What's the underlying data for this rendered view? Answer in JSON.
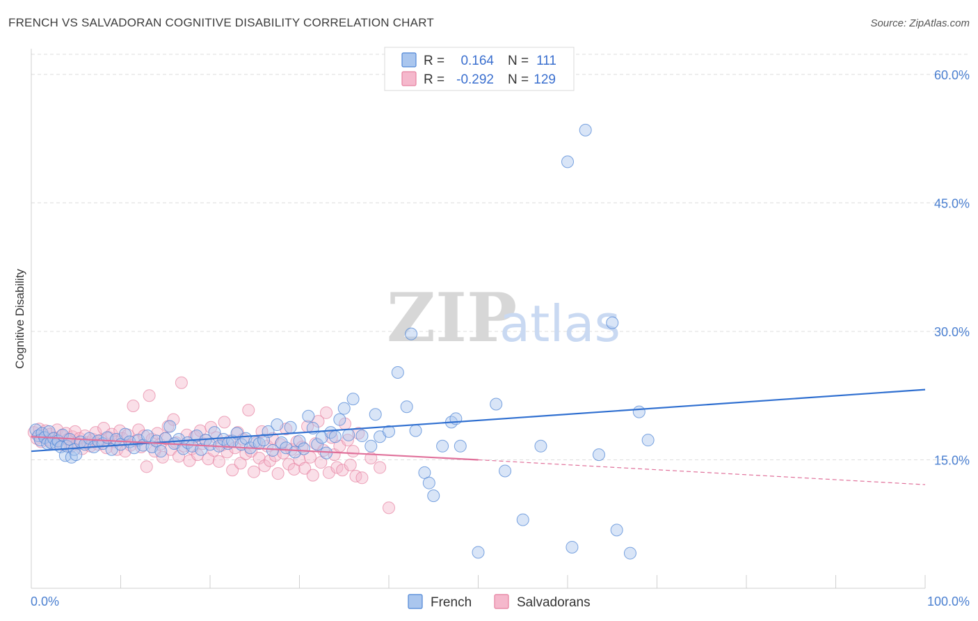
{
  "title": "FRENCH VS SALVADORAN COGNITIVE DISABILITY CORRELATION CHART",
  "source": "Source: ZipAtlas.com",
  "watermark": {
    "zip": "ZIP",
    "atlas": "atlas"
  },
  "colors": {
    "french_fill": "#aac6ee",
    "french_stroke": "#4f86d6",
    "french_line": "#2f6fd0",
    "salvadoran_fill": "#f5b8cc",
    "salvadoran_stroke": "#e5809f",
    "salvadoran_line": "#e0709a",
    "tick_label": "#4a7fd0",
    "grid": "#dddddd"
  },
  "legend": {
    "r_label": "R =",
    "n_label": "N =",
    "french": {
      "r": "0.164",
      "n": "111"
    },
    "salvadoran": {
      "r": "-0.292",
      "n": "129"
    }
  },
  "bottom_legend": {
    "french": "French",
    "salvadoran": "Salvadorans"
  },
  "chart_data": {
    "type": "scatter",
    "title": "FRENCH VS SALVADORAN COGNITIVE DISABILITY CORRELATION CHART",
    "xlabel": "",
    "ylabel": "Cognitive Disability",
    "xlim": [
      0,
      100
    ],
    "ylim": [
      0,
      63
    ],
    "x_tick_labels": [
      "0.0%",
      "100.0%"
    ],
    "y_ticks": [
      15,
      30,
      45,
      60
    ],
    "y_tick_labels": [
      "15.0%",
      "30.0%",
      "45.0%",
      "60.0%"
    ],
    "grid": "horizontal dashed",
    "legend_position": "top-center",
    "series": [
      {
        "name": "French",
        "r": 0.164,
        "n": 111,
        "trend": {
          "x": [
            0,
            100
          ],
          "y": [
            16.0,
            23.2
          ],
          "style": "solid"
        },
        "points": [
          [
            0.5,
            18.5
          ],
          [
            0.8,
            17.8
          ],
          [
            1.0,
            17.3
          ],
          [
            1.2,
            18.1
          ],
          [
            1.5,
            17.6
          ],
          [
            1.8,
            16.9
          ],
          [
            2.0,
            18.3
          ],
          [
            2.2,
            17.0
          ],
          [
            2.5,
            17.5
          ],
          [
            2.8,
            16.8
          ],
          [
            3.0,
            17.2
          ],
          [
            3.3,
            16.5
          ],
          [
            3.5,
            17.9
          ],
          [
            3.8,
            15.5
          ],
          [
            4.0,
            16.6
          ],
          [
            4.3,
            17.4
          ],
          [
            4.5,
            15.3
          ],
          [
            4.8,
            16.2
          ],
          [
            5.0,
            15.6
          ],
          [
            5.5,
            17.1
          ],
          [
            6.0,
            16.8
          ],
          [
            6.5,
            17.5
          ],
          [
            7.0,
            16.5
          ],
          [
            7.5,
            17.2
          ],
          [
            8.0,
            16.9
          ],
          [
            8.5,
            17.6
          ],
          [
            9.0,
            16.2
          ],
          [
            9.5,
            17.4
          ],
          [
            10.0,
            16.8
          ],
          [
            10.5,
            18.0
          ],
          [
            11.0,
            17.1
          ],
          [
            11.5,
            16.4
          ],
          [
            12.0,
            17.3
          ],
          [
            12.5,
            16.7
          ],
          [
            13.0,
            17.8
          ],
          [
            13.5,
            16.5
          ],
          [
            14.0,
            17.2
          ],
          [
            14.5,
            16.0
          ],
          [
            15.0,
            17.5
          ],
          [
            15.5,
            18.9
          ],
          [
            16.0,
            16.9
          ],
          [
            16.5,
            17.4
          ],
          [
            17.0,
            16.3
          ],
          [
            17.5,
            17.0
          ],
          [
            18.0,
            16.6
          ],
          [
            18.5,
            17.8
          ],
          [
            19.0,
            16.2
          ],
          [
            19.5,
            17.3
          ],
          [
            20.0,
            16.8
          ],
          [
            20.5,
            18.2
          ],
          [
            21.0,
            16.6
          ],
          [
            21.5,
            17.4
          ],
          [
            22.0,
            16.9
          ],
          [
            22.5,
            17.2
          ],
          [
            23.0,
            18.1
          ],
          [
            23.5,
            16.8
          ],
          [
            24.0,
            17.5
          ],
          [
            24.5,
            16.4
          ],
          [
            25.0,
            17.1
          ],
          [
            25.5,
            16.9
          ],
          [
            26.0,
            17.3
          ],
          [
            26.5,
            18.3
          ],
          [
            27.0,
            16.1
          ],
          [
            27.5,
            19.1
          ],
          [
            28.0,
            17.0
          ],
          [
            28.5,
            16.4
          ],
          [
            29.0,
            18.8
          ],
          [
            29.5,
            15.9
          ],
          [
            30.0,
            17.2
          ],
          [
            30.5,
            16.3
          ],
          [
            31.0,
            20.1
          ],
          [
            31.5,
            18.7
          ],
          [
            32.0,
            16.8
          ],
          [
            32.5,
            17.6
          ],
          [
            33.0,
            15.8
          ],
          [
            33.5,
            18.2
          ],
          [
            34.0,
            17.7
          ],
          [
            34.5,
            19.7
          ],
          [
            35.0,
            21.0
          ],
          [
            35.5,
            17.9
          ],
          [
            36.0,
            22.1
          ],
          [
            37.0,
            17.8
          ],
          [
            38.0,
            16.6
          ],
          [
            38.5,
            20.3
          ],
          [
            39.0,
            17.7
          ],
          [
            40.0,
            18.3
          ],
          [
            41.0,
            25.2
          ],
          [
            42.0,
            21.2
          ],
          [
            42.5,
            29.7
          ],
          [
            43.0,
            18.4
          ],
          [
            44.0,
            13.5
          ],
          [
            44.5,
            12.3
          ],
          [
            45.0,
            10.8
          ],
          [
            46.0,
            16.6
          ],
          [
            47.0,
            19.4
          ],
          [
            47.5,
            19.8
          ],
          [
            48.0,
            16.6
          ],
          [
            50.0,
            4.2
          ],
          [
            52.0,
            21.5
          ],
          [
            53.0,
            13.7
          ],
          [
            55.0,
            8.0
          ],
          [
            57.0,
            16.6
          ],
          [
            60.0,
            49.8
          ],
          [
            60.5,
            4.8
          ],
          [
            62.0,
            53.5
          ],
          [
            63.5,
            15.6
          ],
          [
            65.0,
            31.0
          ],
          [
            65.5,
            6.8
          ],
          [
            67.0,
            4.1
          ],
          [
            68.0,
            20.6
          ],
          [
            69.0,
            17.3
          ]
        ]
      },
      {
        "name": "Salvadorans",
        "r": -0.292,
        "n": 129,
        "trend": {
          "x": [
            0,
            50
          ],
          "y": [
            17.7,
            15.0
          ],
          "style": "solid",
          "extension": {
            "x": [
              50,
              100
            ],
            "y": [
              15.0,
              12.1
            ],
            "style": "dashed"
          }
        },
        "points": [
          [
            0.3,
            18.2
          ],
          [
            0.6,
            17.5
          ],
          [
            0.9,
            18.6
          ],
          [
            1.1,
            17.1
          ],
          [
            1.4,
            17.9
          ],
          [
            1.6,
            18.4
          ],
          [
            1.9,
            17.3
          ],
          [
            2.1,
            18.0
          ],
          [
            2.4,
            16.9
          ],
          [
            2.6,
            17.6
          ],
          [
            2.9,
            18.5
          ],
          [
            3.1,
            17.2
          ],
          [
            3.4,
            17.8
          ],
          [
            3.6,
            16.7
          ],
          [
            3.9,
            18.1
          ],
          [
            4.1,
            17.4
          ],
          [
            4.4,
            16.5
          ],
          [
            4.6,
            17.7
          ],
          [
            4.9,
            18.3
          ],
          [
            5.1,
            16.9
          ],
          [
            5.4,
            17.5
          ],
          [
            5.7,
            16.3
          ],
          [
            6.0,
            17.8
          ],
          [
            6.3,
            17.0
          ],
          [
            6.6,
            16.6
          ],
          [
            6.9,
            17.4
          ],
          [
            7.2,
            18.2
          ],
          [
            7.5,
            16.8
          ],
          [
            7.8,
            17.3
          ],
          [
            8.1,
            18.7
          ],
          [
            8.4,
            16.4
          ],
          [
            8.7,
            17.6
          ],
          [
            9.0,
            18.0
          ],
          [
            9.3,
            17.1
          ],
          [
            9.6,
            16.2
          ],
          [
            9.9,
            18.4
          ],
          [
            10.2,
            17.5
          ],
          [
            10.5,
            16.0
          ],
          [
            10.8,
            17.9
          ],
          [
            11.1,
            16.7
          ],
          [
            11.4,
            21.3
          ],
          [
            11.7,
            17.2
          ],
          [
            12.0,
            18.5
          ],
          [
            12.3,
            16.5
          ],
          [
            12.6,
            17.8
          ],
          [
            12.9,
            14.2
          ],
          [
            13.2,
            22.5
          ],
          [
            13.5,
            17.4
          ],
          [
            13.8,
            16.0
          ],
          [
            14.1,
            18.1
          ],
          [
            14.4,
            16.8
          ],
          [
            14.7,
            15.3
          ],
          [
            15.0,
            17.5
          ],
          [
            15.3,
            18.9
          ],
          [
            15.6,
            16.2
          ],
          [
            15.9,
            19.7
          ],
          [
            16.2,
            17.0
          ],
          [
            16.5,
            15.4
          ],
          [
            16.8,
            24.0
          ],
          [
            17.1,
            16.6
          ],
          [
            17.4,
            17.9
          ],
          [
            17.7,
            14.9
          ],
          [
            18.0,
            16.3
          ],
          [
            18.3,
            17.7
          ],
          [
            18.6,
            15.6
          ],
          [
            18.9,
            18.4
          ],
          [
            19.2,
            16.9
          ],
          [
            19.5,
            17.3
          ],
          [
            19.8,
            15.1
          ],
          [
            20.1,
            18.8
          ],
          [
            20.4,
            16.1
          ],
          [
            20.7,
            17.6
          ],
          [
            21.0,
            14.8
          ],
          [
            21.3,
            16.7
          ],
          [
            21.6,
            19.4
          ],
          [
            21.9,
            15.9
          ],
          [
            22.2,
            17.2
          ],
          [
            22.5,
            13.8
          ],
          [
            22.8,
            16.4
          ],
          [
            23.1,
            18.2
          ],
          [
            23.4,
            14.6
          ],
          [
            23.7,
            17.4
          ],
          [
            24.0,
            15.7
          ],
          [
            24.3,
            20.8
          ],
          [
            24.6,
            16.0
          ],
          [
            24.9,
            13.6
          ],
          [
            25.2,
            17.0
          ],
          [
            25.5,
            15.2
          ],
          [
            25.8,
            18.3
          ],
          [
            26.1,
            14.3
          ],
          [
            26.4,
            16.6
          ],
          [
            26.7,
            14.9
          ],
          [
            27.0,
            17.5
          ],
          [
            27.3,
            15.5
          ],
          [
            27.6,
            13.4
          ],
          [
            27.9,
            16.8
          ],
          [
            28.2,
            15.8
          ],
          [
            28.5,
            18.6
          ],
          [
            28.8,
            14.5
          ],
          [
            29.1,
            16.2
          ],
          [
            29.4,
            13.9
          ],
          [
            29.7,
            17.1
          ],
          [
            30.0,
            15.0
          ],
          [
            30.3,
            16.5
          ],
          [
            30.6,
            14.0
          ],
          [
            30.9,
            18.9
          ],
          [
            31.2,
            15.3
          ],
          [
            31.5,
            13.2
          ],
          [
            31.8,
            16.9
          ],
          [
            32.1,
            19.5
          ],
          [
            32.4,
            14.7
          ],
          [
            32.7,
            16.1
          ],
          [
            33.0,
            20.5
          ],
          [
            33.3,
            13.5
          ],
          [
            33.6,
            17.6
          ],
          [
            33.9,
            15.6
          ],
          [
            34.2,
            14.1
          ],
          [
            34.5,
            16.6
          ],
          [
            34.8,
            13.8
          ],
          [
            35.1,
            19.2
          ],
          [
            35.4,
            17.3
          ],
          [
            35.7,
            14.4
          ],
          [
            36.0,
            16.0
          ],
          [
            36.3,
            13.1
          ],
          [
            36.6,
            18.1
          ],
          [
            37.0,
            12.9
          ],
          [
            38.0,
            15.2
          ],
          [
            39.0,
            14.1
          ],
          [
            40.0,
            9.4
          ]
        ]
      }
    ]
  }
}
